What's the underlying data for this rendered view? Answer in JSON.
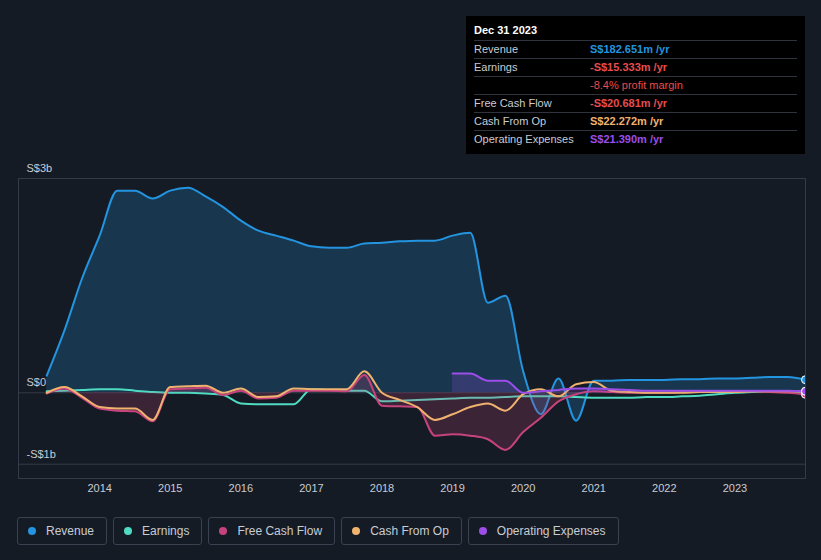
{
  "chart_data": {
    "type": "area",
    "x": [
      2013.25,
      2013.5,
      2013.75,
      2014,
      2014.25,
      2014.5,
      2014.75,
      2015,
      2015.25,
      2015.5,
      2015.75,
      2016,
      2016.25,
      2016.5,
      2016.75,
      2017,
      2017.25,
      2017.5,
      2017.75,
      2018,
      2018.25,
      2018.5,
      2018.75,
      2019,
      2019.25,
      2019.5,
      2019.75,
      2020,
      2020.25,
      2020.5,
      2020.75,
      2021,
      2021.25,
      2021.5,
      2021.75,
      2022,
      2022.25,
      2022.5,
      2022.75,
      2023,
      2023.25,
      2023.5,
      2023.75,
      2024
    ],
    "xlim": [
      2012.85,
      2024.0
    ],
    "xticks": [
      2014,
      2015,
      2016,
      2017,
      2018,
      2019,
      2020,
      2021,
      2022,
      2023
    ],
    "ylim": [
      -1.2,
      3
    ],
    "yticks": [
      {
        "value": -1,
        "label": "-S$1b"
      },
      {
        "value": 0,
        "label": "S$0"
      },
      {
        "value": 3,
        "label": "S$3b"
      }
    ],
    "grid": true,
    "legend": "bottom",
    "series": [
      {
        "name": "Revenue",
        "type": "area",
        "color": "#2394df",
        "values": [
          0.24,
          0.87,
          1.6,
          2.2,
          2.83,
          2.83,
          2.72,
          2.83,
          2.87,
          2.75,
          2.6,
          2.41,
          2.27,
          2.2,
          2.13,
          2.05,
          2.03,
          2.03,
          2.09,
          2.1,
          2.12,
          2.13,
          2.13,
          2.2,
          2.24,
          1.26,
          1.36,
          0.3,
          -0.3,
          0.2,
          -0.39,
          0.17,
          0.17,
          0.18,
          0.18,
          0.18,
          0.19,
          0.19,
          0.2,
          0.2,
          0.21,
          0.22,
          0.22,
          0.183
        ]
      },
      {
        "name": "Earnings",
        "type": "line",
        "color": "#4fdbc1",
        "values": [
          0.02,
          0.03,
          0.04,
          0.05,
          0.05,
          0.03,
          0.01,
          0.0,
          0.0,
          -0.01,
          -0.03,
          -0.15,
          -0.16,
          -0.16,
          -0.16,
          0.05,
          0.04,
          0.03,
          0.03,
          -0.12,
          -0.11,
          -0.1,
          -0.09,
          -0.08,
          -0.07,
          -0.07,
          -0.06,
          -0.05,
          -0.05,
          -0.05,
          -0.06,
          -0.07,
          -0.07,
          -0.07,
          -0.06,
          -0.06,
          -0.05,
          -0.04,
          -0.02,
          0.0,
          0.01,
          0.02,
          0.01,
          -0.015
        ]
      },
      {
        "name": "Free Cash Flow",
        "type": "area",
        "color": "#c7437d",
        "values": [
          -0.01,
          0.06,
          -0.07,
          -0.22,
          -0.25,
          -0.26,
          -0.4,
          0.05,
          0.06,
          0.07,
          -0.03,
          0.03,
          -0.08,
          -0.07,
          0.03,
          0.03,
          0.03,
          0.02,
          0.25,
          -0.18,
          -0.19,
          -0.2,
          -0.6,
          -0.58,
          -0.6,
          -0.65,
          -0.8,
          -0.55,
          -0.35,
          -0.12,
          -0.02,
          0.02,
          0.01,
          0.0,
          0.0,
          0.0,
          0.01,
          0.01,
          0.02,
          0.02,
          0.02,
          0.01,
          0.0,
          -0.021
        ]
      },
      {
        "name": "Cash From Op",
        "type": "line",
        "color": "#f0b36f",
        "values": [
          0.0,
          0.08,
          -0.05,
          -0.2,
          -0.22,
          -0.22,
          -0.38,
          0.08,
          0.09,
          0.1,
          0.0,
          0.06,
          -0.06,
          -0.05,
          0.06,
          0.05,
          0.05,
          0.05,
          0.3,
          0.0,
          -0.1,
          -0.2,
          -0.38,
          -0.3,
          -0.2,
          -0.15,
          -0.25,
          -0.02,
          0.05,
          -0.05,
          0.12,
          0.15,
          0.03,
          0.01,
          0.0,
          0.0,
          0.0,
          0.01,
          0.01,
          0.01,
          0.02,
          0.02,
          0.02,
          0.022
        ]
      },
      {
        "name": "Operating Expenses",
        "type": "area",
        "color": "#9b4ee8",
        "values": [
          null,
          null,
          null,
          null,
          null,
          null,
          null,
          null,
          null,
          null,
          null,
          null,
          null,
          null,
          null,
          null,
          null,
          null,
          null,
          null,
          null,
          null,
          null,
          0.27,
          0.27,
          0.17,
          0.17,
          0.0,
          0.02,
          0.04,
          0.06,
          0.06,
          0.05,
          0.04,
          0.03,
          0.03,
          0.03,
          0.03,
          0.03,
          0.03,
          0.03,
          0.03,
          0.03,
          0.021
        ]
      }
    ],
    "tooltip": {
      "title": "Dec 31 2023",
      "rows": [
        {
          "label": "Revenue",
          "text": "S$182.651m /yr"
        },
        {
          "label": "Earnings",
          "text": "-S$15.333m /yr"
        },
        {
          "text": "-8.4% profit margin"
        },
        {
          "label": "Free Cash Flow",
          "text": "-S$20.681m /yr"
        },
        {
          "label": "Cash From Op",
          "text": "S$22.272m /yr"
        },
        {
          "label": "Operating Expenses",
          "text": "S$21.390m /yr"
        }
      ]
    }
  }
}
